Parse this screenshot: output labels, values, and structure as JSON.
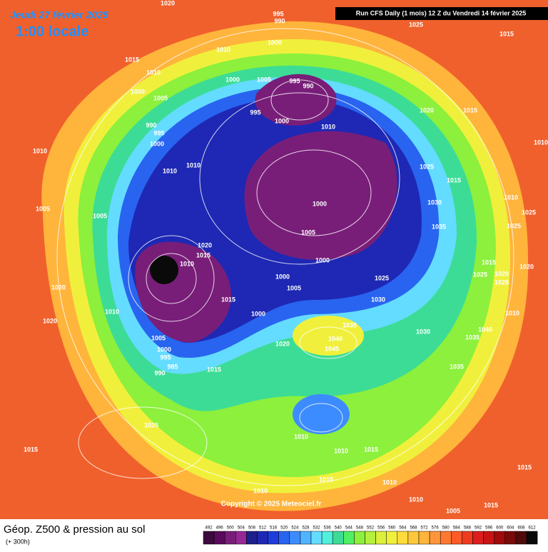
{
  "header": {
    "date": "Jeudi 27 février 2025",
    "time": "1:00 locale",
    "run": "Run CFS Daily (1 mois) 12 Z du Vendredi 14 février 2025"
  },
  "footer": {
    "title": "Géop. Z500 & pression au sol",
    "lead": "(+ 300h)",
    "copyright": "Copyright © 2025 Meteociel.fr"
  },
  "isobar_labels": [
    1020,
    995,
    990,
    1025,
    1015,
    1010,
    1015,
    1000,
    1010,
    1000,
    1005,
    995,
    990,
    1000,
    1005,
    995,
    1000,
    1020,
    1015,
    990,
    995,
    1010,
    1000,
    1010,
    1010,
    1025,
    1010,
    1015,
    1010,
    1000,
    1005,
    1005,
    1030,
    1010,
    1025,
    1035,
    1025,
    1005,
    1020,
    1015,
    1010,
    1000,
    1015,
    1020,
    1020,
    1025,
    1025,
    1000,
    1025,
    1005,
    1020,
    1015,
    1030,
    1010,
    1000,
    1010,
    1020,
    1035,
    1040,
    1030,
    1040,
    1035,
    1005,
    1045,
    1020,
    1000,
    995,
    985,
    990,
    1015,
    1035,
    1025,
    1010,
    1015,
    1010,
    1015,
    1015,
    1015,
    1010,
    1010,
    1010,
    1015,
    1005
  ],
  "scale": {
    "values": [
      492,
      496,
      500,
      504,
      508,
      512,
      516,
      520,
      524,
      528,
      532,
      536,
      540,
      544,
      548,
      552,
      556,
      560,
      564,
      568,
      572,
      576,
      580,
      584,
      588,
      592,
      596,
      600,
      604,
      608,
      612
    ],
    "colors": [
      "#3c0a3c",
      "#5a0a5a",
      "#781e78",
      "#962896",
      "#1e1e8c",
      "#1e28b4",
      "#1e3cdc",
      "#2864f0",
      "#3c8cff",
      "#50b4ff",
      "#64dcff",
      "#50f0dc",
      "#3cdc96",
      "#50f064",
      "#8cf03c",
      "#b4f03c",
      "#dcf03c",
      "#f0f03c",
      "#ffdc3c",
      "#ffc83c",
      "#ffb43c",
      "#ff963c",
      "#ff7832",
      "#ff5a28",
      "#f03c1e",
      "#dc1e1e",
      "#c81414",
      "#a00a0a",
      "#780a0a",
      "#500a0a",
      "#0a0a0a"
    ]
  }
}
